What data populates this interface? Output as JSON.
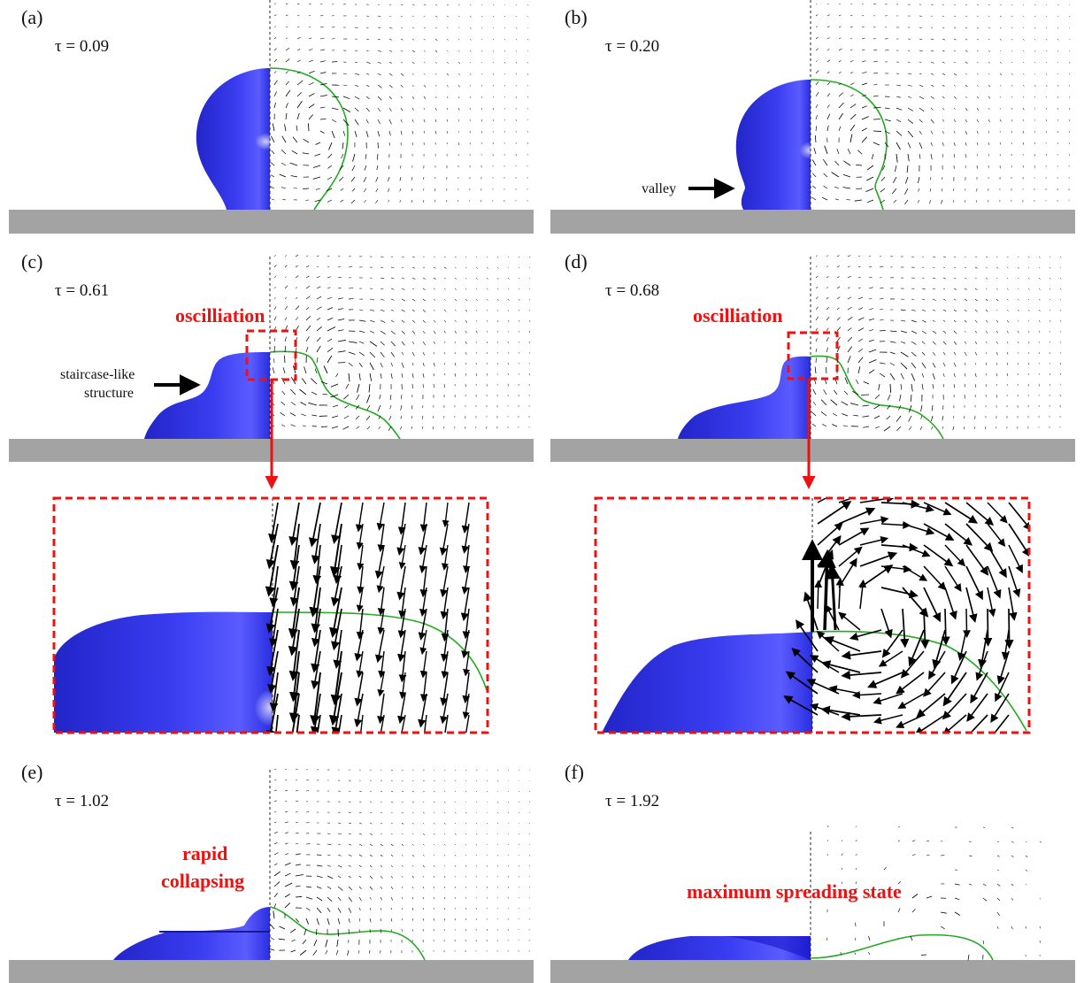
{
  "colors": {
    "droplet": "#2a2de0",
    "droplet_dark": "#1c1fb0",
    "interface": "#22aa22",
    "substrate": "#a3a3a3",
    "highlight": "#ee1111",
    "vectors": "#000000"
  },
  "panels": [
    {
      "id": "a",
      "label": "(a)",
      "tau": "τ = 0.09"
    },
    {
      "id": "b",
      "label": "(b)",
      "tau": "τ = 0.20",
      "annotation": "valley"
    },
    {
      "id": "c",
      "label": "(c)",
      "tau": "τ = 0.61",
      "highlight": "oscilliation",
      "annotation_line1": "staircase-like",
      "annotation_line2": "structure"
    },
    {
      "id": "d",
      "label": "(d)",
      "tau": "τ = 0.68",
      "highlight": "oscilliation"
    },
    {
      "id": "e",
      "label": "(e)",
      "tau": "τ = 1.02",
      "highlight_line1": "rapid",
      "highlight_line2": "collapsing"
    },
    {
      "id": "f",
      "label": "(f)",
      "tau": "τ = 1.92",
      "highlight": "maximum spreading state"
    }
  ],
  "icons": [
    "arrow-right-icon",
    "arrow-down-icon",
    "zoom-box-icon"
  ]
}
